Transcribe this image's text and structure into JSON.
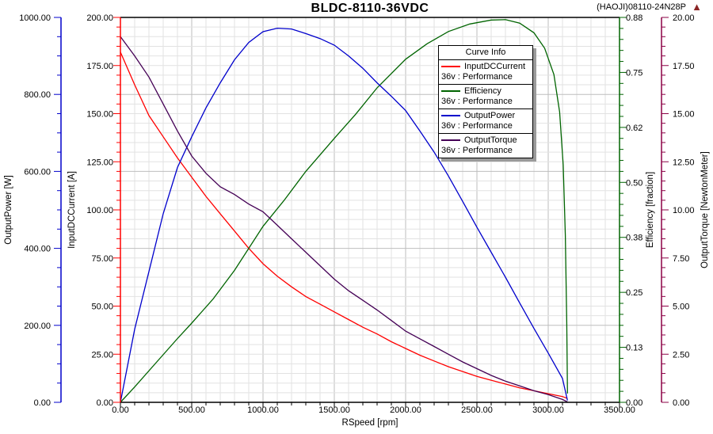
{
  "header": {
    "title": "BLDC-8110-36VDC",
    "annotation": "(HAOJI)08110-24N28P",
    "logo_icon": "ansys-triangle"
  },
  "legend": {
    "title": "Curve Info"
  },
  "colors": {
    "background": "#FFFFFF",
    "grid_minor": "#E2E2E2",
    "grid_major": "#BEBEBE",
    "plot_border": "#000000"
  },
  "chart_data": {
    "type": "line",
    "title": "BLDC-8110-36VDC",
    "grid": "on",
    "legend_position": "upper-right-inside",
    "x_axis": {
      "title": "RSpeed [rpm]",
      "min": 0,
      "max": 3500,
      "tick_labels": [
        "0.00",
        "500.00",
        "1000.00",
        "1500.00",
        "2000.00",
        "2500.00",
        "3000.00",
        "3500.00"
      ],
      "color": "#000000"
    },
    "y_axes": [
      {
        "id": "power",
        "title": "OutputPower [W]",
        "min": 0,
        "max": 1000,
        "tick_labels": [
          "0.00",
          "200.00",
          "400.00",
          "600.00",
          "800.00",
          "1000.00"
        ],
        "color": "#0000CC",
        "position": "left-outer"
      },
      {
        "id": "current",
        "title": "InputDCCurrent [A]",
        "min": 0,
        "max": 200,
        "tick_labels": [
          "0.00",
          "25.00",
          "50.00",
          "75.00",
          "100.00",
          "125.00",
          "150.00",
          "175.00",
          "200.00"
        ],
        "color": "#FF0000",
        "position": "left-inner"
      },
      {
        "id": "efficiency",
        "title": "Efficiency [fraction]",
        "min": 0,
        "max": 0.875,
        "tick_labels": [
          "0.00",
          "0.13",
          "0.25",
          "0.38",
          "0.50",
          "0.62",
          "0.75",
          "0.88"
        ],
        "color": "#006400",
        "position": "right-inner"
      },
      {
        "id": "torque",
        "title": "OutputTorque [NewtonMeter]",
        "min": 0,
        "max": 20,
        "tick_labels": [
          "0.00",
          "2.50",
          "5.00",
          "7.50",
          "10.00",
          "12.50",
          "15.00",
          "17.50",
          "20.00"
        ],
        "color": "#8B0045",
        "position": "right-outer"
      }
    ],
    "series": [
      {
        "name": "InputDCCurrent",
        "sub": "36v : Performance",
        "axis": "current",
        "color": "#FF0000",
        "points": [
          [
            0,
            182
          ],
          [
            100,
            165
          ],
          [
            200,
            149
          ],
          [
            300,
            138
          ],
          [
            400,
            127
          ],
          [
            500,
            117
          ],
          [
            600,
            107
          ],
          [
            700,
            98
          ],
          [
            800,
            89
          ],
          [
            900,
            80
          ],
          [
            1000,
            72
          ],
          [
            1100,
            65.5
          ],
          [
            1200,
            60
          ],
          [
            1300,
            55
          ],
          [
            1400,
            51
          ],
          [
            1500,
            47
          ],
          [
            1600,
            43
          ],
          [
            1700,
            39
          ],
          [
            1800,
            35.5
          ],
          [
            1900,
            31.5
          ],
          [
            2000,
            28
          ],
          [
            2100,
            24.5
          ],
          [
            2200,
            21.5
          ],
          [
            2300,
            18.5
          ],
          [
            2400,
            16
          ],
          [
            2500,
            13.5
          ],
          [
            2600,
            11.5
          ],
          [
            2700,
            9.5
          ],
          [
            2800,
            7.5
          ],
          [
            2900,
            6
          ],
          [
            3000,
            4.5
          ],
          [
            3100,
            3
          ],
          [
            3135,
            2
          ]
        ]
      },
      {
        "name": "Efficiency",
        "sub": "36v : Performance",
        "axis": "efficiency",
        "color": "#006400",
        "points": [
          [
            0,
            0
          ],
          [
            100,
            0.035
          ],
          [
            250,
            0.09
          ],
          [
            400,
            0.145
          ],
          [
            500,
            0.18
          ],
          [
            650,
            0.235
          ],
          [
            800,
            0.3
          ],
          [
            1000,
            0.4
          ],
          [
            1150,
            0.46
          ],
          [
            1300,
            0.525
          ],
          [
            1500,
            0.6
          ],
          [
            1650,
            0.655
          ],
          [
            1800,
            0.715
          ],
          [
            2000,
            0.78
          ],
          [
            2150,
            0.815
          ],
          [
            2300,
            0.843
          ],
          [
            2450,
            0.86
          ],
          [
            2600,
            0.869
          ],
          [
            2700,
            0.87
          ],
          [
            2800,
            0.862
          ],
          [
            2900,
            0.84
          ],
          [
            2975,
            0.805
          ],
          [
            3040,
            0.745
          ],
          [
            3080,
            0.66
          ],
          [
            3105,
            0.54
          ],
          [
            3120,
            0.38
          ],
          [
            3130,
            0.18
          ],
          [
            3135,
            0.02
          ]
        ]
      },
      {
        "name": "OutputPower",
        "sub": "36v : Performance",
        "axis": "power",
        "color": "#0000CC",
        "points": [
          [
            0,
            0
          ],
          [
            100,
            190
          ],
          [
            200,
            340
          ],
          [
            300,
            490
          ],
          [
            400,
            610
          ],
          [
            500,
            690
          ],
          [
            600,
            765
          ],
          [
            700,
            830
          ],
          [
            800,
            890
          ],
          [
            900,
            935
          ],
          [
            1000,
            963
          ],
          [
            1100,
            972
          ],
          [
            1200,
            970
          ],
          [
            1300,
            958
          ],
          [
            1400,
            945
          ],
          [
            1500,
            928
          ],
          [
            1600,
            900
          ],
          [
            1700,
            868
          ],
          [
            1800,
            830
          ],
          [
            1900,
            795
          ],
          [
            2000,
            758
          ],
          [
            2100,
            705
          ],
          [
            2200,
            650
          ],
          [
            2300,
            588
          ],
          [
            2400,
            522
          ],
          [
            2500,
            455
          ],
          [
            2600,
            390
          ],
          [
            2700,
            325
          ],
          [
            2800,
            258
          ],
          [
            2900,
            192
          ],
          [
            3000,
            128
          ],
          [
            3050,
            95
          ],
          [
            3100,
            62
          ],
          [
            3135,
            5
          ]
        ]
      },
      {
        "name": "OutputTorque",
        "sub": "36v : Performance",
        "axis": "torque",
        "color": "#440055",
        "points": [
          [
            0,
            19
          ],
          [
            100,
            18
          ],
          [
            200,
            16.9
          ],
          [
            300,
            15.5
          ],
          [
            400,
            14.1
          ],
          [
            500,
            12.8
          ],
          [
            600,
            11.9
          ],
          [
            700,
            11.2
          ],
          [
            800,
            10.8
          ],
          [
            900,
            10.3
          ],
          [
            1000,
            9.9
          ],
          [
            1100,
            9.2
          ],
          [
            1200,
            8.5
          ],
          [
            1300,
            7.8
          ],
          [
            1400,
            7.1
          ],
          [
            1500,
            6.4
          ],
          [
            1600,
            5.8
          ],
          [
            1700,
            5.3
          ],
          [
            1800,
            4.8
          ],
          [
            1900,
            4.25
          ],
          [
            2000,
            3.7
          ],
          [
            2100,
            3.3
          ],
          [
            2200,
            2.9
          ],
          [
            2300,
            2.5
          ],
          [
            2400,
            2.1
          ],
          [
            2500,
            1.75
          ],
          [
            2600,
            1.4
          ],
          [
            2700,
            1.1
          ],
          [
            2800,
            0.85
          ],
          [
            2900,
            0.6
          ],
          [
            3000,
            0.4
          ],
          [
            3100,
            0.15
          ],
          [
            3135,
            0.02
          ]
        ]
      }
    ]
  }
}
